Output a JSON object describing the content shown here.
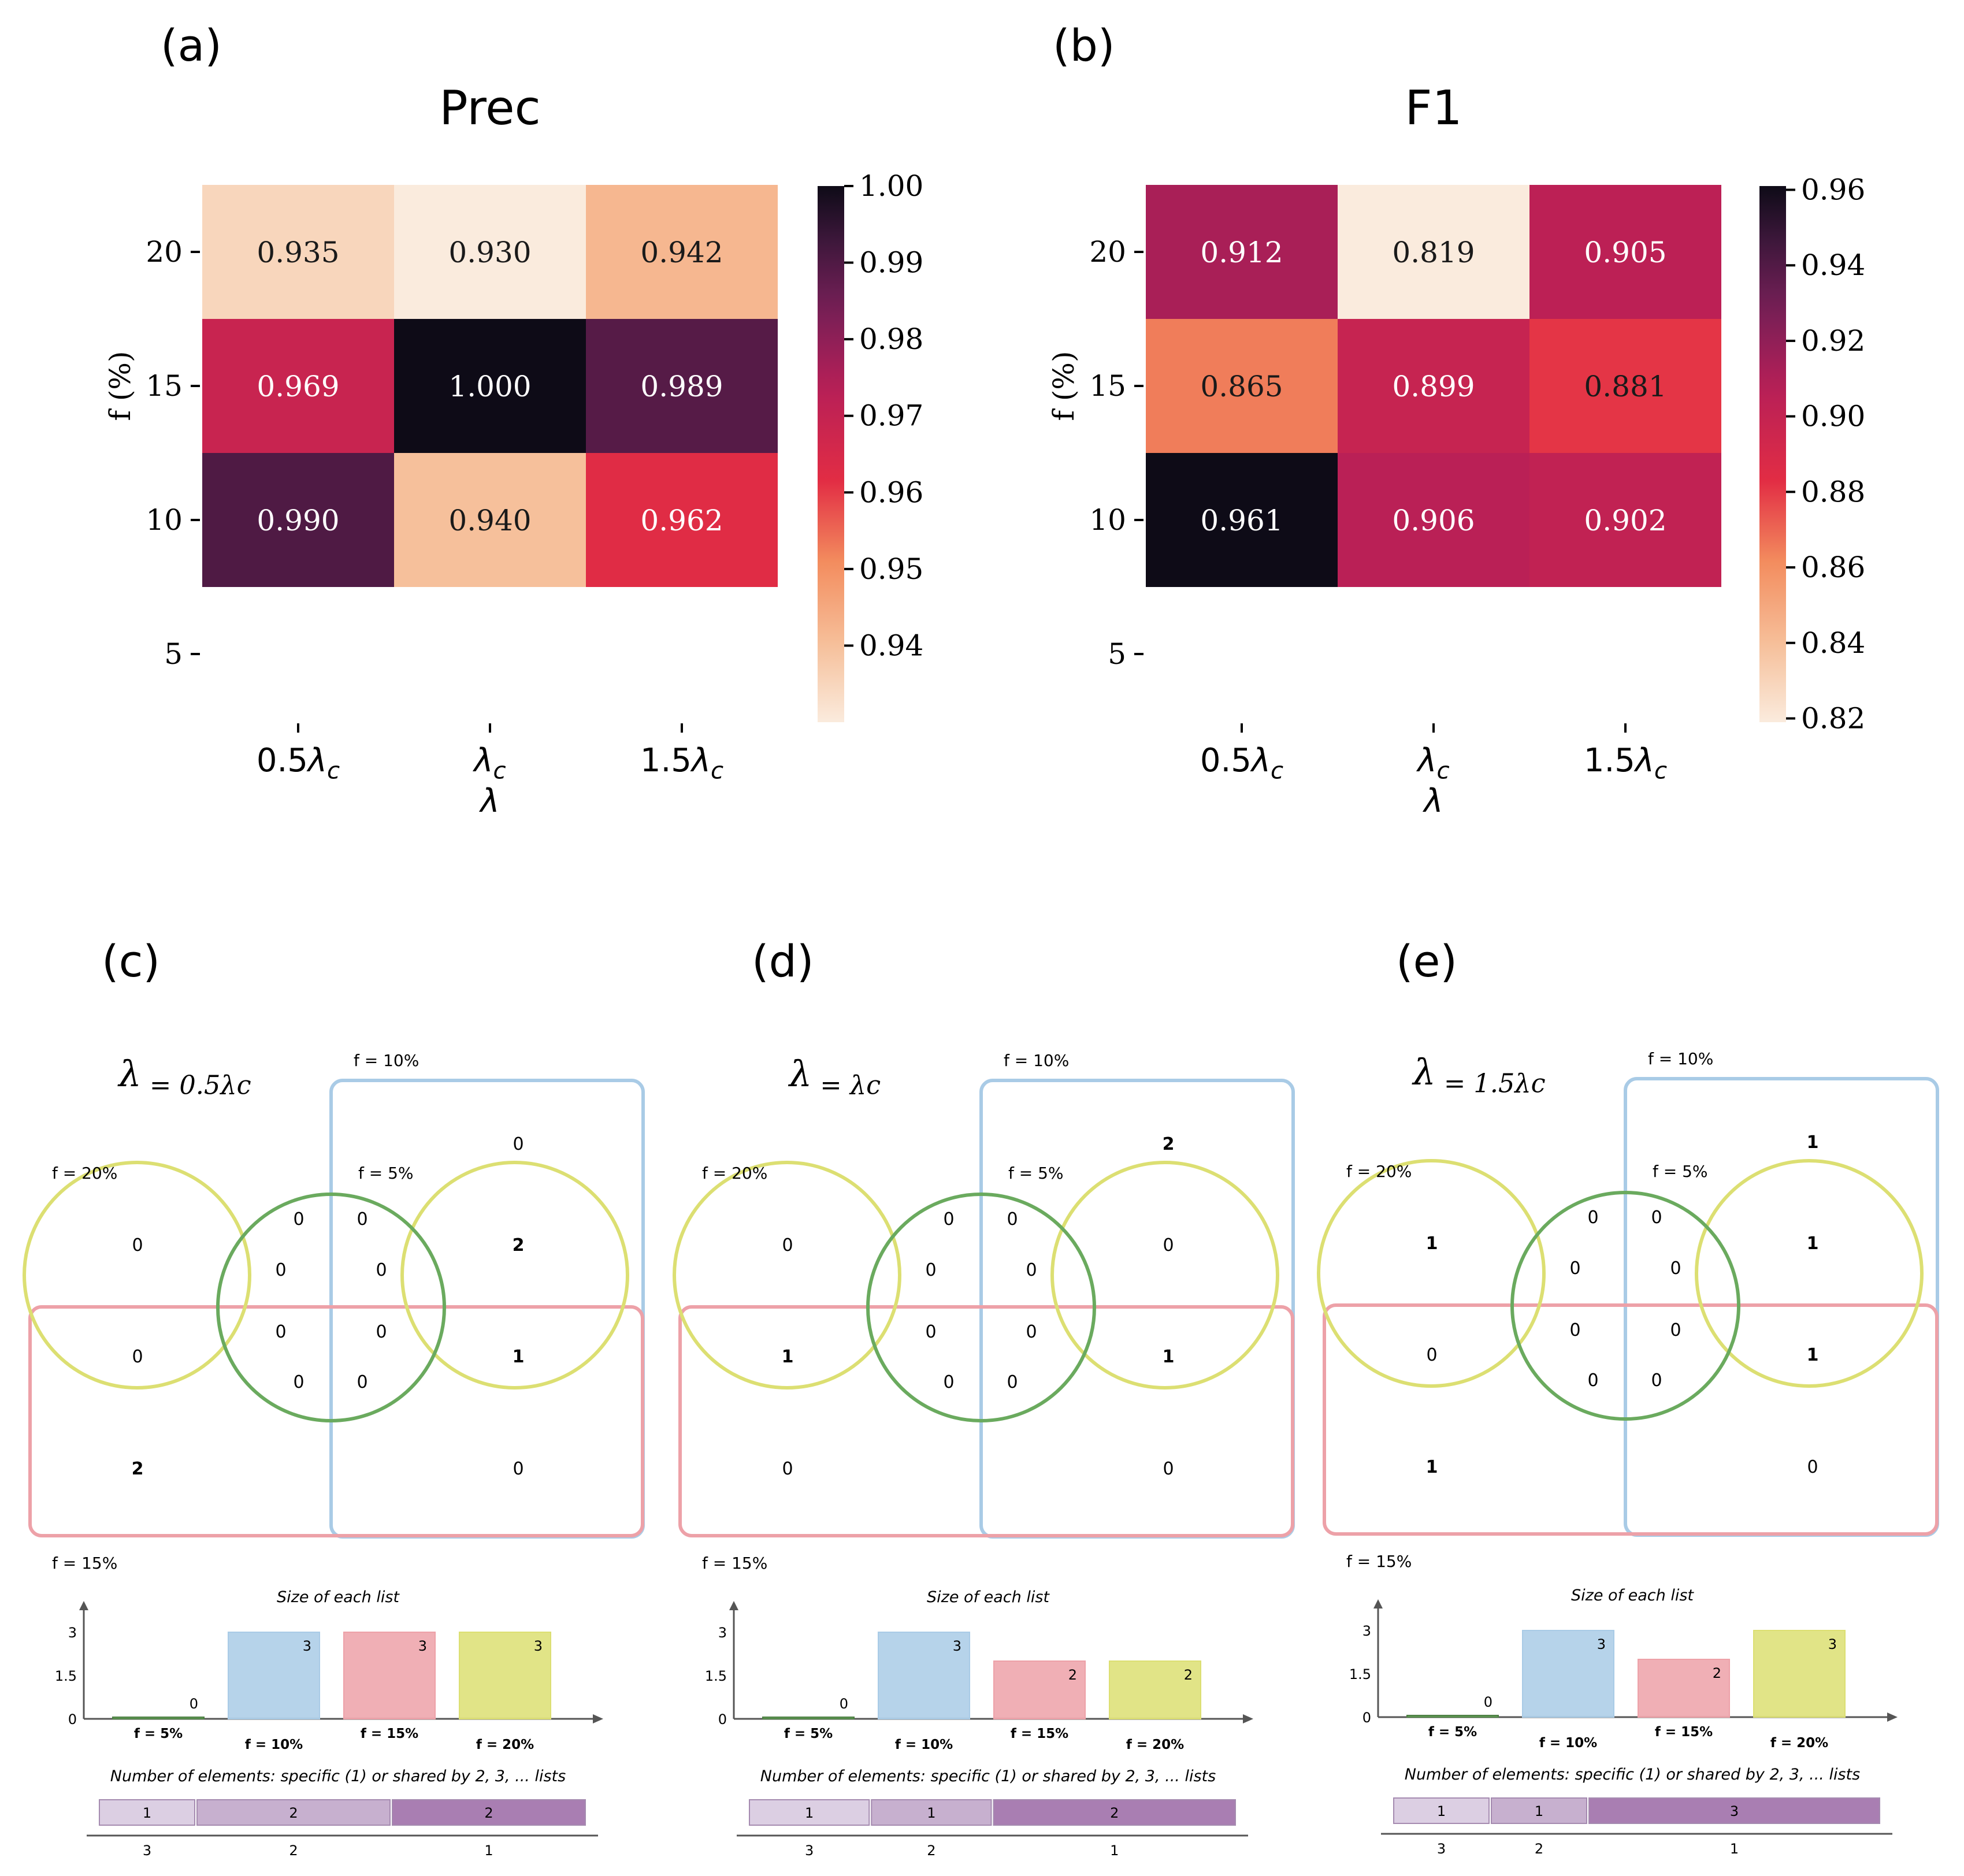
{
  "chart_data": [
    {
      "type": "heatmap",
      "panel_label": "(a)",
      "title": "Prec",
      "xlabel": "λ",
      "ylabel": "f (%)",
      "x_categories": [
        "0.5λc",
        "λc",
        "1.5λc"
      ],
      "y_ticks": [
        "20",
        "15",
        "10",
        "5"
      ],
      "rows": [
        {
          "f": "20",
          "values": [
            0.935,
            0.93,
            0.942
          ],
          "labels": [
            "0.935",
            "0.930",
            "0.942"
          ]
        },
        {
          "f": "15",
          "values": [
            0.969,
            1.0,
            0.989
          ],
          "labels": [
            "0.969",
            "1.000",
            "0.989"
          ]
        },
        {
          "f": "10",
          "values": [
            0.99,
            0.94,
            0.962
          ],
          "labels": [
            "0.990",
            "0.940",
            "0.962"
          ]
        }
      ],
      "colorbar": {
        "range": [
          0.93,
          1.0
        ],
        "ticks": [
          "1.00",
          "0.99",
          "0.98",
          "0.97",
          "0.96",
          "0.95",
          "0.94"
        ]
      }
    },
    {
      "type": "heatmap",
      "panel_label": "(b)",
      "title": "F1",
      "xlabel": "λ",
      "ylabel": "f (%)",
      "x_categories": [
        "0.5λc",
        "λc",
        "1.5λc"
      ],
      "y_ticks": [
        "20",
        "15",
        "10",
        "5"
      ],
      "rows": [
        {
          "f": "20",
          "values": [
            0.912,
            0.819,
            0.905
          ],
          "labels": [
            "0.912",
            "0.819",
            "0.905"
          ]
        },
        {
          "f": "15",
          "values": [
            0.865,
            0.899,
            0.881
          ],
          "labels": [
            "0.865",
            "0.899",
            "0.881"
          ]
        },
        {
          "f": "10",
          "values": [
            0.961,
            0.906,
            0.902
          ],
          "labels": [
            "0.961",
            "0.906",
            "0.902"
          ]
        }
      ],
      "colorbar": {
        "range": [
          0.819,
          0.961
        ],
        "ticks": [
          "0.96",
          "0.94",
          "0.92",
          "0.90",
          "0.88",
          "0.86",
          "0.84",
          "0.82"
        ]
      }
    }
  ],
  "venn_panels": [
    {
      "panel_label": "(c)",
      "lambda_label": "λ = 0.5λc",
      "set_labels": {
        "f10": "f = 10%",
        "f20": "f = 20%",
        "f5": "f = 5%",
        "f15": "f = 15%"
      },
      "region_counts": {
        "top_blue": "0",
        "left_top": "0",
        "ring_tl": "0",
        "ring_tr": "0",
        "right_top": "2",
        "inner_tl": "0",
        "inner_tr": "0",
        "inner_bl": "0",
        "inner_br": "0",
        "left_bot": "0",
        "ring_bl": "0",
        "ring_br": "0",
        "right_bot": "1",
        "bottom_left": "2",
        "bottom_right": "0"
      },
      "bold_regions": [
        "right_top",
        "right_bot",
        "bottom_left"
      ],
      "size_chart": {
        "title": "Size of each list",
        "y_ticks": [
          "3",
          "1.5",
          "0"
        ],
        "categories": [
          "f = 5%",
          "f = 10%",
          "f = 15%",
          "f = 20%"
        ],
        "values": [
          0,
          3,
          3,
          3
        ],
        "value_labels": [
          "0",
          "3",
          "3",
          "3"
        ]
      },
      "shared_title": "Number of elements: specific (1) or shared by 2, 3, ... lists",
      "shared_segments": [
        {
          "count": 1,
          "label": "1",
          "axis_label": "3"
        },
        {
          "count": 2,
          "label": "2",
          "axis_label": "2"
        },
        {
          "count": 2,
          "label": "2",
          "axis_label": "1"
        }
      ]
    },
    {
      "panel_label": "(d)",
      "lambda_label": "λ = λc",
      "set_labels": {
        "f10": "f = 10%",
        "f20": "f = 20%",
        "f5": "f = 5%",
        "f15": "f = 15%"
      },
      "region_counts": {
        "top_blue": "2",
        "left_top": "0",
        "ring_tl": "0",
        "ring_tr": "0",
        "right_top": "0",
        "inner_tl": "0",
        "inner_tr": "0",
        "inner_bl": "0",
        "inner_br": "0",
        "left_bot": "1",
        "ring_bl": "0",
        "ring_br": "0",
        "right_bot": "1",
        "bottom_left": "0",
        "bottom_right": "0"
      },
      "bold_regions": [
        "top_blue",
        "left_bot",
        "right_bot"
      ],
      "size_chart": {
        "title": "Size of each list",
        "y_ticks": [
          "3",
          "1.5",
          "0"
        ],
        "categories": [
          "f = 5%",
          "f = 10%",
          "f = 15%",
          "f = 20%"
        ],
        "values": [
          0,
          3,
          2,
          2
        ],
        "value_labels": [
          "0",
          "3",
          "2",
          "2"
        ]
      },
      "shared_title": "Number of elements: specific (1) or shared by 2, 3, ... lists",
      "shared_segments": [
        {
          "count": 1,
          "label": "1",
          "axis_label": "3"
        },
        {
          "count": 1,
          "label": "1",
          "axis_label": "2"
        },
        {
          "count": 2,
          "label": "2",
          "axis_label": "1"
        }
      ]
    },
    {
      "panel_label": "(e)",
      "lambda_label": "λ = 1.5λc",
      "set_labels": {
        "f10": "f = 10%",
        "f20": "f = 20%",
        "f5": "f = 5%",
        "f15": "f = 15%"
      },
      "region_counts": {
        "top_blue": "1",
        "left_top": "1",
        "ring_tl": "0",
        "ring_tr": "0",
        "right_top": "1",
        "inner_tl": "0",
        "inner_tr": "0",
        "inner_bl": "0",
        "inner_br": "0",
        "left_bot": "0",
        "ring_bl": "0",
        "ring_br": "0",
        "right_bot": "1",
        "bottom_left": "1",
        "bottom_right": "0"
      },
      "bold_regions": [
        "top_blue",
        "left_top",
        "right_top",
        "right_bot",
        "bottom_left"
      ],
      "size_chart": {
        "title": "Size of each list",
        "y_ticks": [
          "3",
          "1.5",
          "0"
        ],
        "categories": [
          "f = 5%",
          "f = 10%",
          "f = 15%",
          "f = 20%"
        ],
        "values": [
          0,
          3,
          2,
          3
        ],
        "value_labels": [
          "0",
          "3",
          "2",
          "3"
        ]
      },
      "shared_title": "Number of elements: specific (1) or shared by 2, 3, ... lists",
      "shared_segments": [
        {
          "count": 1,
          "label": "1",
          "axis_label": "3"
        },
        {
          "count": 1,
          "label": "1",
          "axis_label": "2"
        },
        {
          "count": 3,
          "label": "3",
          "axis_label": "1"
        }
      ]
    }
  ],
  "colors": {
    "f5": "#6aaa5e",
    "f10": "#a9cbe6",
    "f15": "#eda1a8",
    "f20": "#dcdf72",
    "seg_light": "#dccfe3",
    "seg_mid": "#c7b0cf",
    "seg_dark": "#a97eb2"
  }
}
